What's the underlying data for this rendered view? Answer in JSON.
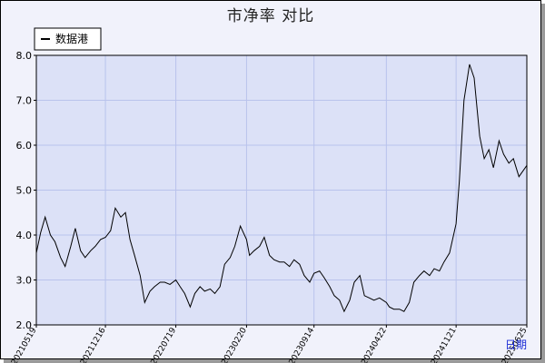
{
  "chart_data": {
    "type": "line",
    "title": "市净率  对比",
    "xlabel": "日期",
    "ylabel": "",
    "ylim": [
      2.0,
      8.0
    ],
    "yticks": [
      "2.0",
      "3.0",
      "4.0",
      "5.0",
      "6.0",
      "7.0",
      "8.0"
    ],
    "xticks": [
      "20210519",
      "20211216",
      "20220719",
      "20230220",
      "20230914",
      "20240422",
      "20241121",
      "20250625"
    ],
    "grid": true,
    "legend_position": "top-left",
    "colors": {
      "plot_bg": "#dce1f7",
      "line": "#000000",
      "grid": "#b9c3ec"
    },
    "series": [
      {
        "name": "数据港",
        "x": [
          "20210519",
          "20210601",
          "20210615",
          "20210701",
          "20210715",
          "20210801",
          "20210815",
          "20210901",
          "20210915",
          "20211001",
          "20211015",
          "20211101",
          "20211115",
          "20211201",
          "20211216",
          "20220101",
          "20220115",
          "20220201",
          "20220215",
          "20220301",
          "20220315",
          "20220401",
          "20220415",
          "20220501",
          "20220515",
          "20220601",
          "20220615",
          "20220701",
          "20220719",
          "20220801",
          "20220815",
          "20220901",
          "20220915",
          "20221001",
          "20221015",
          "20221101",
          "20221115",
          "20221201",
          "20221215",
          "20230101",
          "20230115",
          "20230201",
          "20230220",
          "20230301",
          "20230315",
          "20230401",
          "20230415",
          "20230501",
          "20230515",
          "20230601",
          "20230615",
          "20230701",
          "20230715",
          "20230801",
          "20230815",
          "20230901",
          "20230914",
          "20231001",
          "20231015",
          "20231101",
          "20231115",
          "20231201",
          "20231215",
          "20240101",
          "20240115",
          "20240201",
          "20240215",
          "20240301",
          "20240315",
          "20240401",
          "20240422",
          "20240501",
          "20240515",
          "20240601",
          "20240615",
          "20240701",
          "20240715",
          "20240801",
          "20240815",
          "20240901",
          "20240915",
          "20241001",
          "20241015",
          "20241101",
          "20241121",
          "20241201",
          "20241215",
          "20250101",
          "20250115",
          "20250201",
          "20250215",
          "20250301",
          "20250315",
          "20250401",
          "20250415",
          "20250501",
          "20250515",
          "20250601",
          "20250625"
        ],
        "values": [
          3.6,
          4.05,
          4.4,
          4.0,
          3.85,
          3.5,
          3.3,
          3.75,
          4.15,
          3.65,
          3.5,
          3.65,
          3.75,
          3.9,
          3.95,
          4.1,
          4.6,
          4.4,
          4.5,
          3.9,
          3.55,
          3.1,
          2.5,
          2.75,
          2.85,
          2.95,
          2.95,
          2.9,
          3.0,
          2.85,
          2.7,
          2.4,
          2.7,
          2.85,
          2.75,
          2.8,
          2.7,
          2.85,
          3.35,
          3.5,
          3.75,
          4.2,
          3.9,
          3.55,
          3.65,
          3.75,
          3.95,
          3.55,
          3.45,
          3.4,
          3.4,
          3.3,
          3.45,
          3.35,
          3.1,
          2.95,
          3.15,
          3.2,
          3.05,
          2.85,
          2.65,
          2.55,
          2.3,
          2.55,
          2.95,
          3.1,
          2.65,
          2.6,
          2.55,
          2.6,
          2.5,
          2.4,
          2.35,
          2.35,
          2.3,
          2.5,
          2.95,
          3.1,
          3.2,
          3.1,
          3.25,
          3.2,
          3.4,
          3.6,
          4.25,
          5.2,
          7.0,
          7.8,
          7.5,
          6.2,
          5.7,
          5.9,
          5.5,
          6.1,
          5.8,
          5.6,
          5.7,
          5.3,
          5.55
        ]
      }
    ]
  }
}
